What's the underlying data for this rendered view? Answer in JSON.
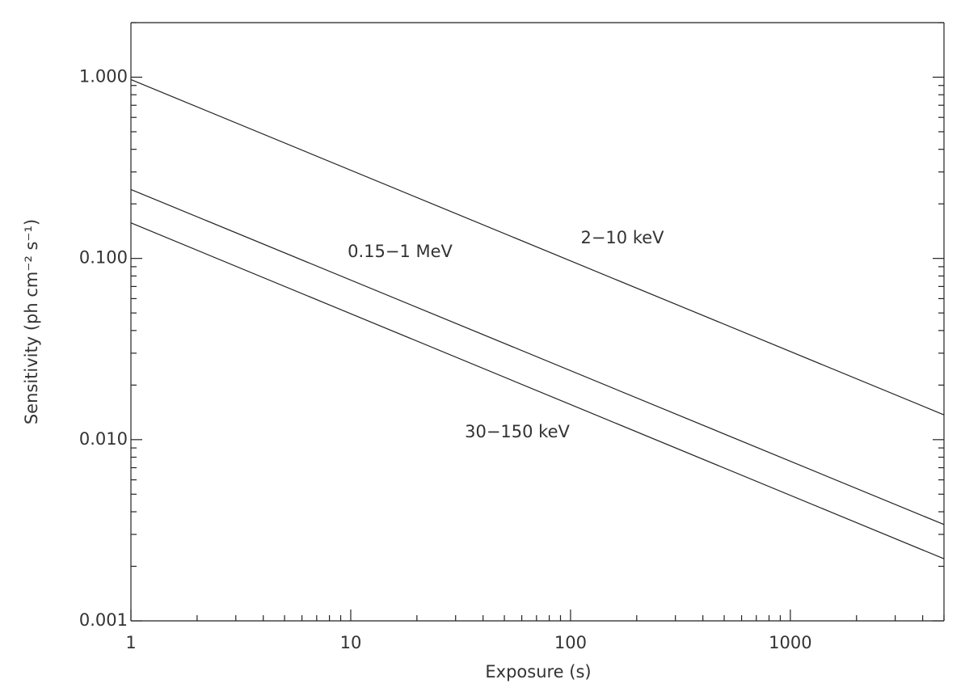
{
  "chart_data": {
    "type": "line",
    "xlabel": "Exposure (s)",
    "ylabel": "Sensitivity (ph cm⁻² s⁻¹)",
    "x": [
      1,
      5000
    ],
    "series": [
      {
        "name": "2−10 keV",
        "color": "#222222",
        "values": [
          0.97,
          0.0137
        ]
      },
      {
        "name": "0.15−1 MeV",
        "color": "#222222",
        "values": [
          0.24,
          0.0034
        ]
      },
      {
        "name": "30−150 keV",
        "color": "#222222",
        "values": [
          0.157,
          0.0022
        ]
      }
    ],
    "xlim": [
      1,
      5000
    ],
    "xticks": [
      1,
      10,
      100,
      1000
    ],
    "ylim": [
      0.001,
      2
    ],
    "yticks": [
      {
        "value": 0.001,
        "label": "0.001"
      },
      {
        "value": 0.01,
        "label": "0.010"
      },
      {
        "value": 0.1,
        "label": "0.100"
      },
      {
        "value": 1,
        "label": "1.000"
      }
    ],
    "xscale": "log",
    "yscale": "log",
    "grid": false
  }
}
